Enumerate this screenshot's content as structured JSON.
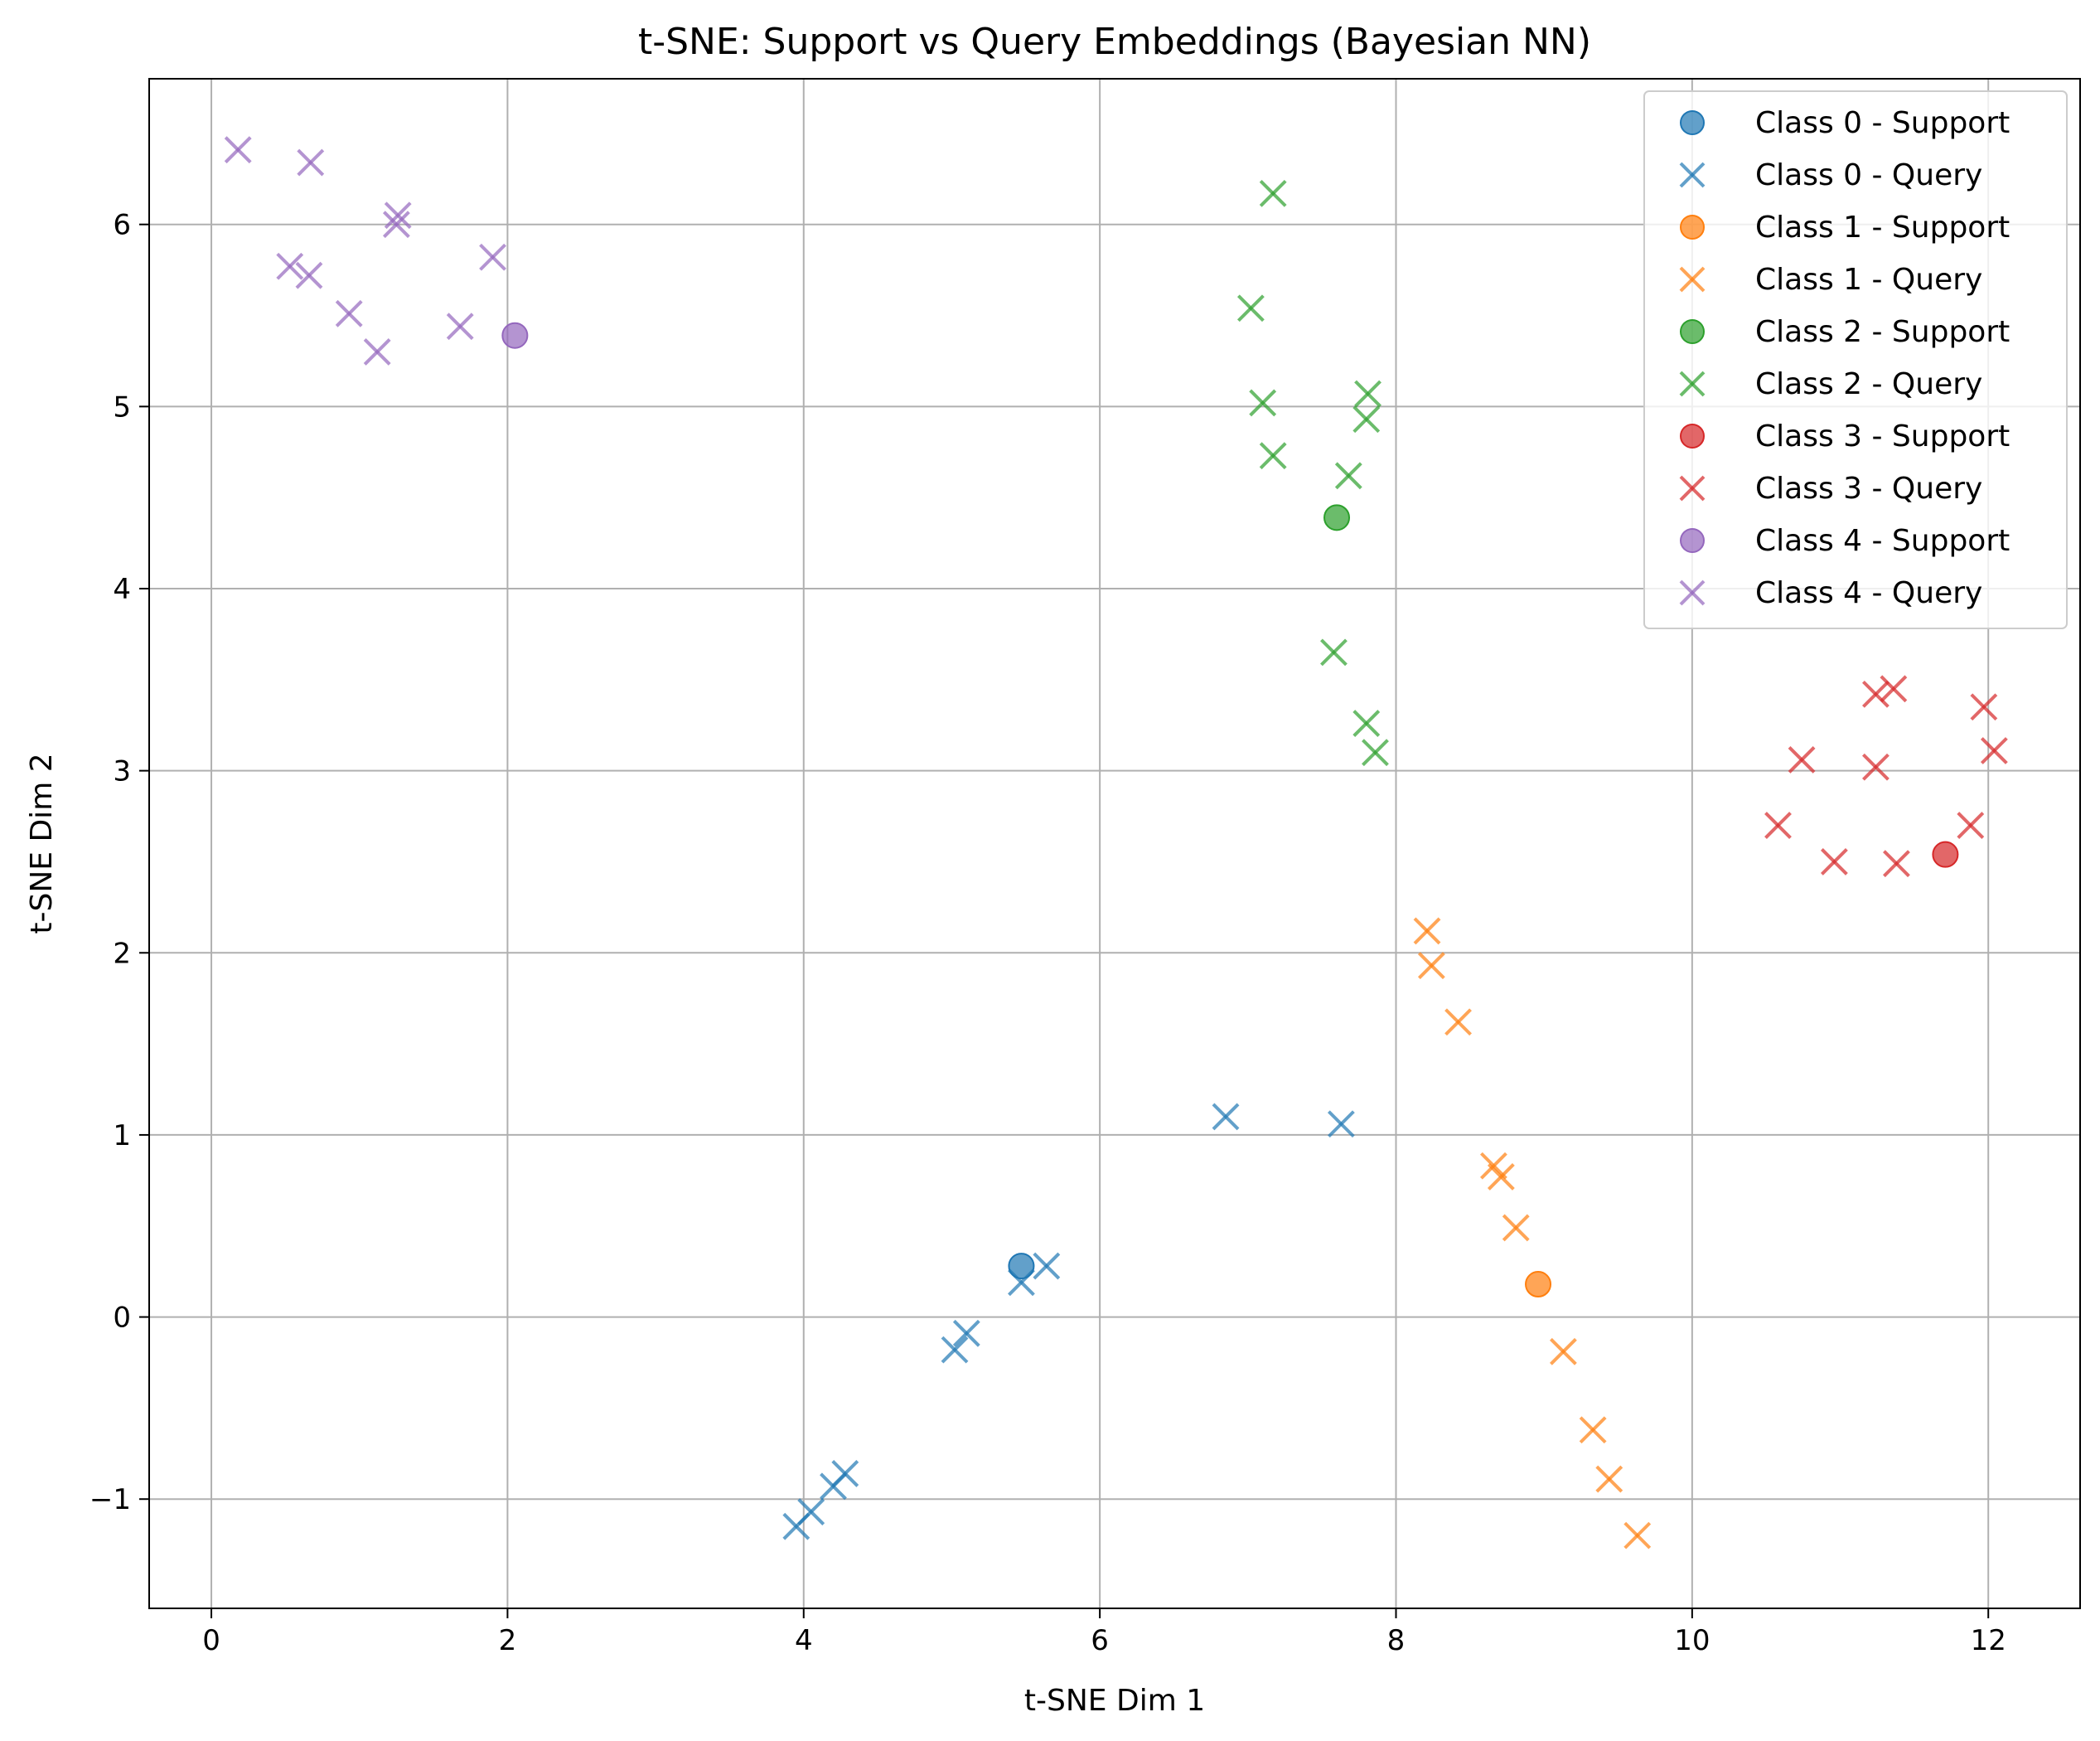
{
  "chart_data": {
    "type": "scatter",
    "title": "t-SNE: Support vs Query Embeddings (Bayesian NN)",
    "xlabel": "t-SNE Dim 1",
    "ylabel": "t-SNE Dim 2",
    "xlim": [
      -0.42,
      12.62
    ],
    "ylim": [
      -1.6,
      6.8
    ],
    "xticks": [
      0,
      2,
      4,
      6,
      8,
      10,
      12
    ],
    "yticks": [
      -1,
      0,
      1,
      2,
      3,
      4,
      5,
      6
    ],
    "xtick_labels": [
      "0",
      "2",
      "4",
      "6",
      "8",
      "10",
      "12"
    ],
    "ytick_labels": [
      "−1",
      "0",
      "1",
      "2",
      "3",
      "4",
      "5",
      "6"
    ],
    "grid": true,
    "legend_position": "top-right",
    "series": [
      {
        "name": "Class 0 - Support",
        "marker": "circle",
        "color": "#1f77b4",
        "points": [
          [
            5.47,
            0.28
          ]
        ]
      },
      {
        "name": "Class 0 - Query",
        "marker": "x",
        "color": "#1f77b4",
        "points": [
          [
            3.95,
            -1.15
          ],
          [
            4.05,
            -1.07
          ],
          [
            4.2,
            -0.93
          ],
          [
            4.28,
            -0.86
          ],
          [
            5.02,
            -0.18
          ],
          [
            5.1,
            -0.09
          ],
          [
            5.47,
            0.19
          ],
          [
            5.64,
            0.28
          ],
          [
            6.85,
            1.1
          ],
          [
            7.63,
            1.06
          ]
        ]
      },
      {
        "name": "Class 1 - Support",
        "marker": "circle",
        "color": "#ff7f0e",
        "points": [
          [
            8.96,
            0.18
          ]
        ]
      },
      {
        "name": "Class 1 - Query",
        "marker": "x",
        "color": "#ff7f0e",
        "points": [
          [
            8.21,
            2.12
          ],
          [
            8.24,
            1.93
          ],
          [
            8.42,
            1.62
          ],
          [
            8.66,
            0.83
          ],
          [
            8.71,
            0.77
          ],
          [
            8.81,
            0.49
          ],
          [
            9.13,
            -0.19
          ],
          [
            9.33,
            -0.62
          ],
          [
            9.44,
            -0.89
          ],
          [
            9.63,
            -1.2
          ]
        ]
      },
      {
        "name": "Class 2 - Support",
        "marker": "circle",
        "color": "#2ca02c",
        "points": [
          [
            7.6,
            4.39
          ]
        ]
      },
      {
        "name": "Class 2 - Query",
        "marker": "x",
        "color": "#2ca02c",
        "points": [
          [
            7.17,
            6.17
          ],
          [
            7.02,
            5.54
          ],
          [
            7.1,
            5.02
          ],
          [
            7.17,
            4.73
          ],
          [
            7.81,
            5.07
          ],
          [
            7.8,
            4.93
          ],
          [
            7.68,
            4.62
          ],
          [
            7.58,
            3.65
          ],
          [
            7.8,
            3.26
          ],
          [
            7.86,
            3.1
          ]
        ]
      },
      {
        "name": "Class 3 - Support",
        "marker": "circle",
        "color": "#d62728",
        "points": [
          [
            11.71,
            2.54
          ]
        ]
      },
      {
        "name": "Class 3 - Query",
        "marker": "x",
        "color": "#d62728",
        "points": [
          [
            10.58,
            2.7
          ],
          [
            10.74,
            3.06
          ],
          [
            10.96,
            2.5
          ],
          [
            11.24,
            3.42
          ],
          [
            11.36,
            3.45
          ],
          [
            11.24,
            3.02
          ],
          [
            11.38,
            2.49
          ],
          [
            11.88,
            2.7
          ],
          [
            11.97,
            3.35
          ],
          [
            12.04,
            3.11
          ]
        ]
      },
      {
        "name": "Class 4 - Support",
        "marker": "circle",
        "color": "#9467bd",
        "points": [
          [
            2.05,
            5.39
          ]
        ]
      },
      {
        "name": "Class 4 - Query",
        "marker": "x",
        "color": "#9467bd",
        "points": [
          [
            0.18,
            6.41
          ],
          [
            0.67,
            6.34
          ],
          [
            1.26,
            6.05
          ],
          [
            1.25,
            6.0
          ],
          [
            0.53,
            5.77
          ],
          [
            0.66,
            5.72
          ],
          [
            1.9,
            5.82
          ],
          [
            0.93,
            5.51
          ],
          [
            1.68,
            5.44
          ],
          [
            1.12,
            5.3
          ]
        ]
      }
    ]
  }
}
